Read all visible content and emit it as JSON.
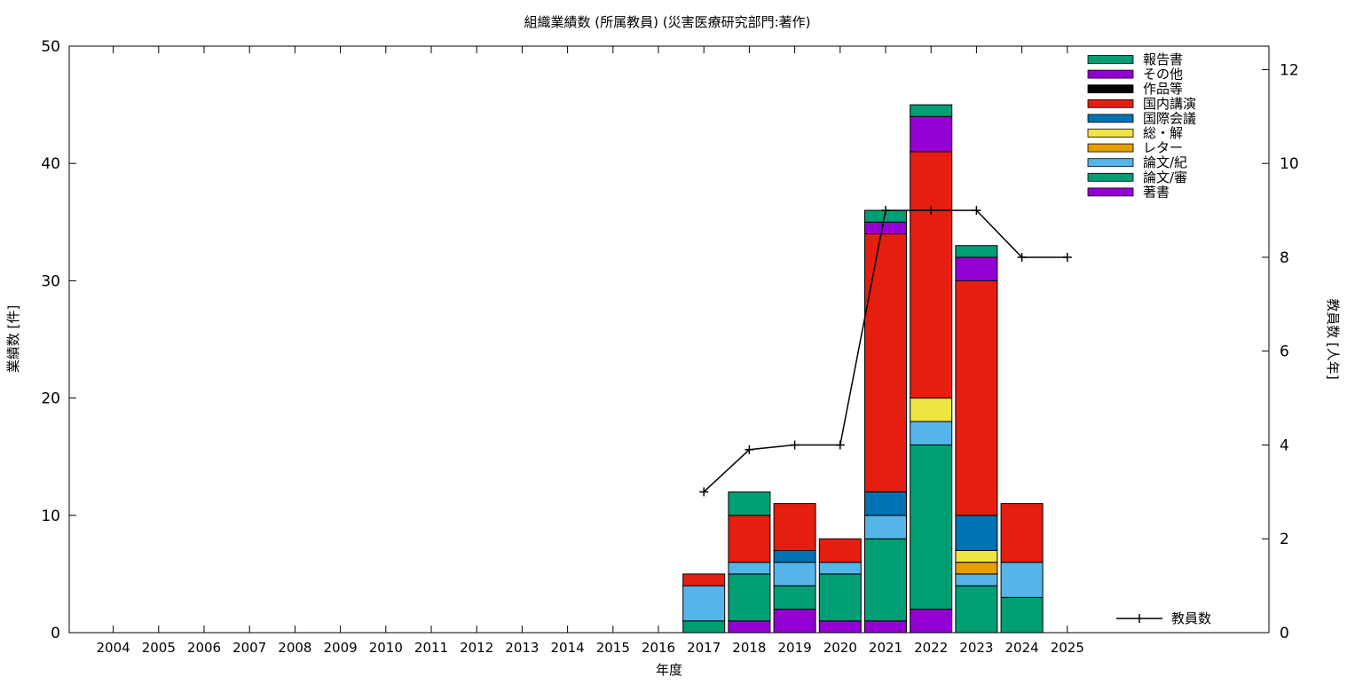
{
  "chart_data": {
    "type": "bar",
    "stacked": true,
    "title": "組織業績数 (所属教員) (災害医療研究部門:著作)",
    "xlabel": "年度",
    "ylabel": "業績数 [件]",
    "y2label": "教員数 [人年]",
    "ylim": [
      0,
      50
    ],
    "y2lim": [
      0,
      12.5
    ],
    "yticks": [
      "0",
      "10",
      "20",
      "30",
      "40",
      "50"
    ],
    "y2ticks": [
      "0",
      "2",
      "4",
      "6",
      "8",
      "10",
      "12"
    ],
    "grid": false,
    "legend_position": "top-right",
    "categories": [
      "2004",
      "2005",
      "2006",
      "2007",
      "2008",
      "2009",
      "2010",
      "2011",
      "2012",
      "2013",
      "2014",
      "2015",
      "2016",
      "2017",
      "2018",
      "2019",
      "2020",
      "2021",
      "2022",
      "2023",
      "2024",
      "2025"
    ],
    "series": [
      {
        "name": "著書",
        "color": "#9400d3",
        "values": [
          0,
          0,
          0,
          0,
          0,
          0,
          0,
          0,
          0,
          0,
          0,
          0,
          0,
          0,
          1,
          2,
          1,
          1,
          2,
          0,
          0,
          0
        ]
      },
      {
        "name": "論文/審",
        "color": "#009e73",
        "values": [
          0,
          0,
          0,
          0,
          0,
          0,
          0,
          0,
          0,
          0,
          0,
          0,
          0,
          1,
          4,
          2,
          4,
          7,
          14,
          4,
          3,
          0
        ]
      },
      {
        "name": "論文/紀",
        "color": "#56b4e9",
        "values": [
          0,
          0,
          0,
          0,
          0,
          0,
          0,
          0,
          0,
          0,
          0,
          0,
          0,
          3,
          1,
          2,
          1,
          2,
          2,
          1,
          3,
          0
        ]
      },
      {
        "name": "レター",
        "color": "#e69f00",
        "values": [
          0,
          0,
          0,
          0,
          0,
          0,
          0,
          0,
          0,
          0,
          0,
          0,
          0,
          0,
          0,
          0,
          0,
          0,
          0,
          1,
          0,
          0
        ]
      },
      {
        "name": "総・解",
        "color": "#f0e442",
        "values": [
          0,
          0,
          0,
          0,
          0,
          0,
          0,
          0,
          0,
          0,
          0,
          0,
          0,
          0,
          0,
          0,
          0,
          0,
          2,
          1,
          0,
          0
        ]
      },
      {
        "name": "国際会議",
        "color": "#0072b2",
        "values": [
          0,
          0,
          0,
          0,
          0,
          0,
          0,
          0,
          0,
          0,
          0,
          0,
          0,
          0,
          0,
          1,
          0,
          2,
          0,
          3,
          0,
          0
        ]
      },
      {
        "name": "国内講演",
        "color": "#e51e10",
        "values": [
          0,
          0,
          0,
          0,
          0,
          0,
          0,
          0,
          0,
          0,
          0,
          0,
          0,
          1,
          4,
          4,
          2,
          22,
          21,
          20,
          5,
          0
        ]
      },
      {
        "name": "作品等",
        "color": "#000000",
        "values": [
          0,
          0,
          0,
          0,
          0,
          0,
          0,
          0,
          0,
          0,
          0,
          0,
          0,
          0,
          0,
          0,
          0,
          0,
          0,
          0,
          0,
          0
        ]
      },
      {
        "name": "その他",
        "color": "#9400d3",
        "values": [
          0,
          0,
          0,
          0,
          0,
          0,
          0,
          0,
          0,
          0,
          0,
          0,
          0,
          0,
          0,
          0,
          0,
          1,
          3,
          2,
          0,
          0
        ]
      },
      {
        "name": "報告書",
        "color": "#009e73",
        "values": [
          0,
          0,
          0,
          0,
          0,
          0,
          0,
          0,
          0,
          0,
          0,
          0,
          0,
          0,
          2,
          0,
          0,
          1,
          1,
          1,
          0,
          0
        ]
      }
    ],
    "line": {
      "name": "教員数",
      "axis": "y2",
      "color": "#000000",
      "x": [
        "2017",
        "2018",
        "2019",
        "2020",
        "2021",
        "2022",
        "2023",
        "2024",
        "2025"
      ],
      "values": [
        3,
        3.9,
        4,
        4,
        9,
        9,
        9,
        8,
        8
      ]
    }
  }
}
